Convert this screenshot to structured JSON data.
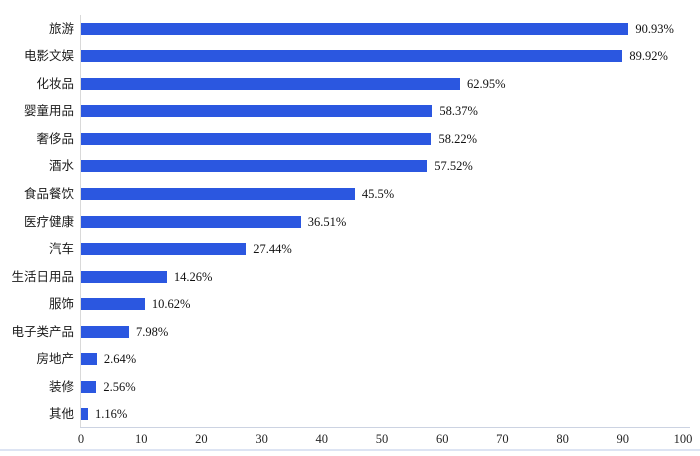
{
  "chart_data": {
    "type": "bar",
    "orientation": "horizontal",
    "title": "",
    "xlabel": "",
    "ylabel": "",
    "categories": [
      "旅游",
      "电影文娱",
      "化妆品",
      "婴童用品",
      "奢侈品",
      "酒水",
      "食品餐饮",
      "医疗健康",
      "汽车",
      "生活日用品",
      "服饰",
      "电子类产品",
      "房地产",
      "装修",
      "其他"
    ],
    "values": [
      90.93,
      89.92,
      62.95,
      58.37,
      58.22,
      57.52,
      45.5,
      36.51,
      27.44,
      14.26,
      10.62,
      7.98,
      2.64,
      2.56,
      1.16
    ],
    "value_labels": [
      "90.93%",
      "89.92%",
      "62.95%",
      "58.37%",
      "58.22%",
      "57.52%",
      "45.5%",
      "36.51%",
      "27.44%",
      "14.26%",
      "10.62%",
      "7.98%",
      "2.64%",
      "2.56%",
      "1.16%"
    ],
    "xlim": [
      0,
      100
    ],
    "x_ticks": [
      "0",
      "10",
      "20",
      "30",
      "40",
      "50",
      "60",
      "70",
      "80",
      "90",
      "100"
    ],
    "grid": "off",
    "legend": "none",
    "bar_color": "#2b57e0",
    "axis_line_color": "#ccd3e2",
    "text_color": "#1a1a1a"
  }
}
